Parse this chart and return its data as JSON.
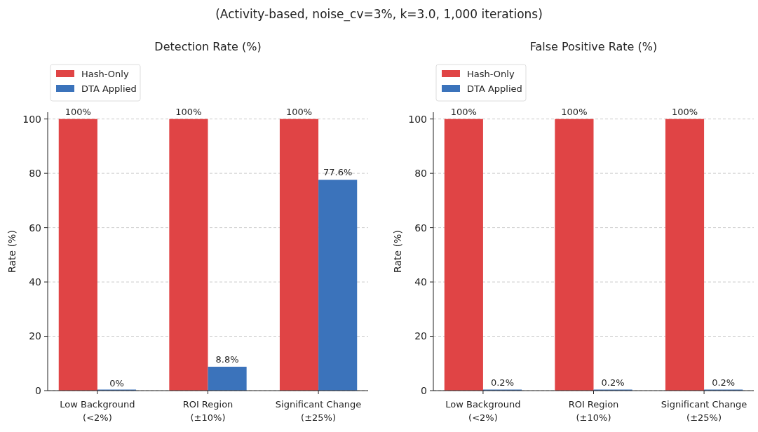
{
  "chart_data": [
    {
      "type": "bar",
      "subtitle": "(Activity-based, noise_cv=3%, k=3.0, 1,000 iterations)",
      "title": "Detection Rate (%)",
      "ylabel": "Rate (%)",
      "categories": [
        "Low Background\n(<2%)",
        "ROI Region\n(±10%)",
        "Significant Change\n(±25%)"
      ],
      "series": [
        {
          "name": "Hash-Only",
          "color": "#e04445",
          "values": [
            100,
            100,
            100
          ],
          "value_labels": [
            "100%",
            "100%",
            "100%"
          ]
        },
        {
          "name": "DTA Applied",
          "color": "#3b73bb",
          "values": [
            0,
            8.8,
            77.6
          ],
          "value_labels": [
            "0%",
            "8.8%",
            "77.6%"
          ]
        }
      ],
      "ylim": [
        0,
        102.5
      ],
      "yticks": [
        0,
        20,
        40,
        60,
        80,
        100
      ],
      "grid": "y",
      "legend": "top left"
    },
    {
      "type": "bar",
      "title": "False Positive Rate (%)",
      "ylabel": "Rate (%)",
      "categories": [
        "Low Background\n(<2%)",
        "ROI Region\n(±10%)",
        "Significant Change\n(±25%)"
      ],
      "series": [
        {
          "name": "Hash-Only",
          "color": "#e04445",
          "values": [
            100,
            100,
            100
          ],
          "value_labels": [
            "100%",
            "100%",
            "100%"
          ]
        },
        {
          "name": "DTA Applied",
          "color": "#3b73bb",
          "values": [
            0.2,
            0.2,
            0.2
          ],
          "value_labels": [
            "0.2%",
            "0.2%",
            "0.2%"
          ]
        }
      ],
      "ylim": [
        0,
        102.5
      ],
      "yticks": [
        0,
        20,
        40,
        60,
        80,
        100
      ],
      "grid": "y",
      "legend": "top left"
    }
  ]
}
